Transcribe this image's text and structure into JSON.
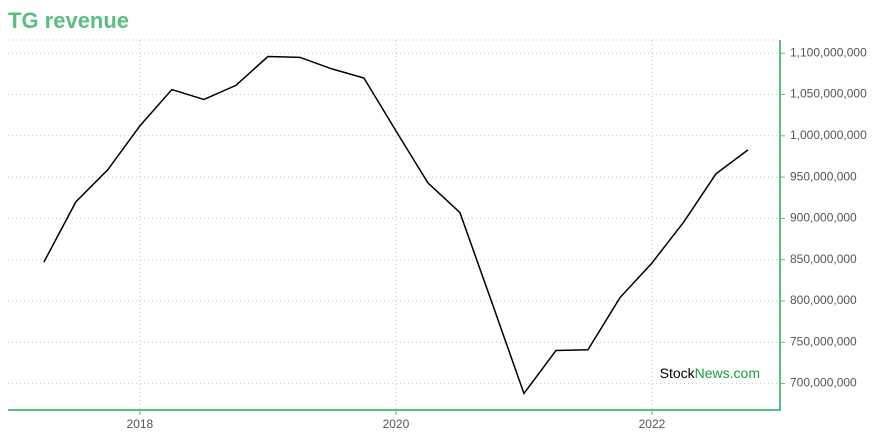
{
  "chart_data": {
    "type": "line",
    "title": "TG revenue",
    "x": [
      2017.25,
      2017.5,
      2017.75,
      2018,
      2018.25,
      2018.5,
      2018.75,
      2019,
      2019.25,
      2019.5,
      2019.75,
      2020,
      2020.25,
      2020.5,
      2020.75,
      2021,
      2021.25,
      2021.5,
      2021.75,
      2022,
      2022.25,
      2022.5,
      2022.75
    ],
    "series": [
      {
        "name": "TG revenue",
        "color": "#000000",
        "values": [
          847000000,
          920000000,
          959000000,
          1012000000,
          1056000000,
          1044000000,
          1061000000,
          1096000000,
          1095000000,
          1081000000,
          1070000000,
          1006000000,
          943000000,
          907000000,
          798000000,
          688000000,
          740000000,
          741000000,
          804000000,
          846000000,
          896000000,
          954000000,
          983000000
        ]
      }
    ],
    "xlim": [
      2016.97,
      2023
    ],
    "xticks": [
      2018,
      2020,
      2022
    ],
    "ylim": [
      668000000,
      1116000000
    ],
    "yticks": [
      {
        "value": 700000000,
        "label": "700,000,000"
      },
      {
        "value": 750000000,
        "label": "750,000,000"
      },
      {
        "value": 800000000,
        "label": "800,000,000"
      },
      {
        "value": 850000000,
        "label": "850,000,000"
      },
      {
        "value": 900000000,
        "label": "900,000,000"
      },
      {
        "value": 950000000,
        "label": "950,000,000"
      },
      {
        "value": 1000000000,
        "label": "1,000,000,000"
      },
      {
        "value": 1050000000,
        "label": "1,050,000,000"
      },
      {
        "value": 1100000000,
        "label": "1,100,000,000"
      }
    ],
    "grid": true,
    "axis_color": "#5bbd7f",
    "watermark": [
      "Stock",
      "News.com"
    ]
  }
}
